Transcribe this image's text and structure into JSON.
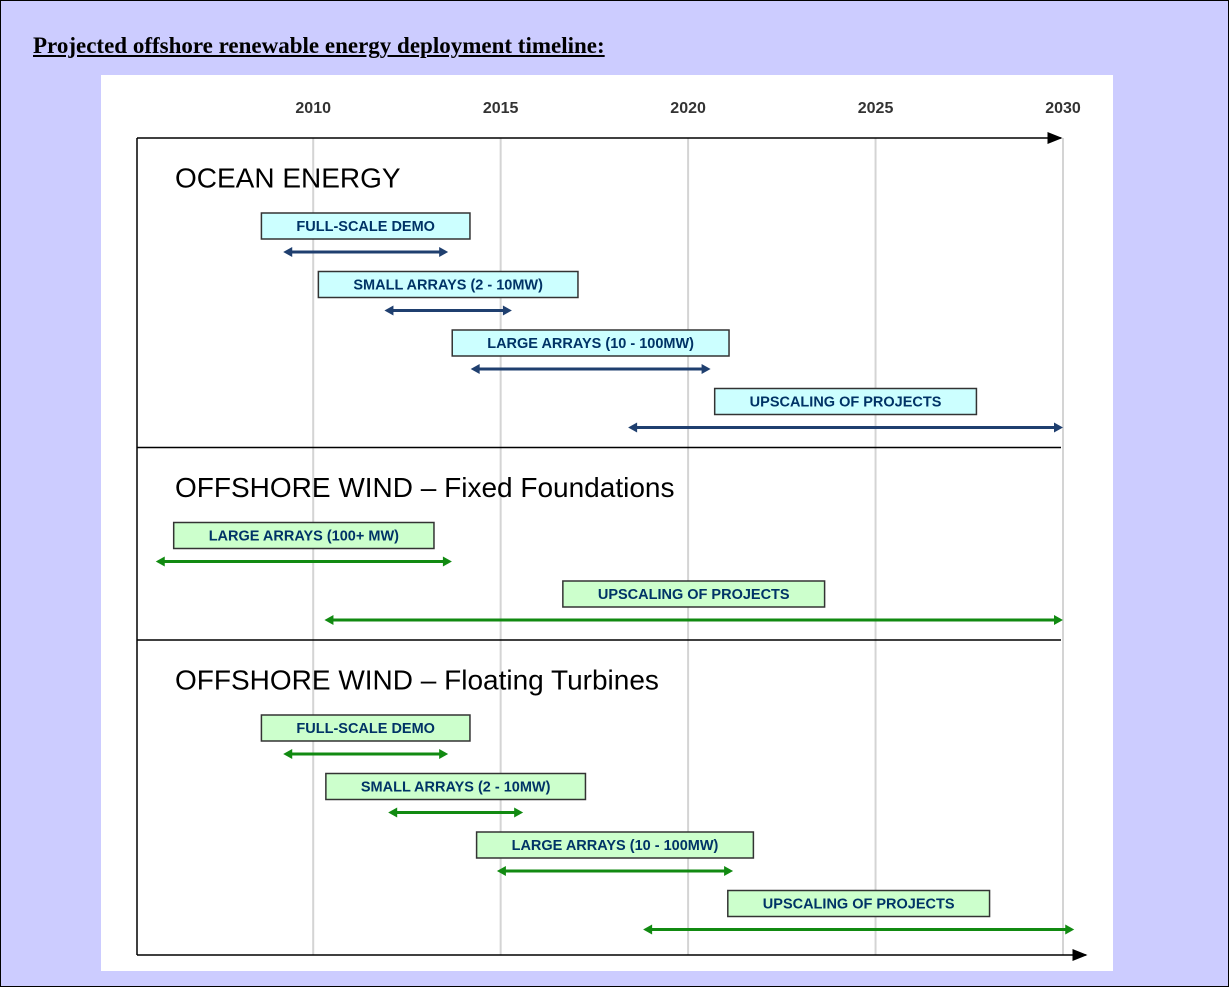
{
  "chart_data": {
    "type": "timeline",
    "title": "Projected offshore renewable energy deployment timeline:",
    "xlim": [
      2005.3,
      2030
    ],
    "xticks": [
      2010,
      2015,
      2020,
      2025,
      2030
    ],
    "grid": true,
    "groups": [
      {
        "name": "OCEAN ENERGY",
        "color": "#1f3f6f",
        "box_color": "#ccffff",
        "tasks": [
          {
            "label": "FULL-SCALE DEMO",
            "start": 2009.2,
            "end": 2013.6
          },
          {
            "label": "SMALL ARRAYS (2 - 10MW)",
            "start": 2011.9,
            "end": 2015.3
          },
          {
            "label": "LARGE ARRAYS (10 - 100MW)",
            "start": 2014.2,
            "end": 2020.6
          },
          {
            "label": "UPSCALING OF PROJECTS",
            "start": 2018.4,
            "end": 2030
          }
        ]
      },
      {
        "name": "OFFSHORE WIND – Fixed Foundations",
        "color": "#118a11",
        "box_color": "#ccffcc",
        "tasks": [
          {
            "label": "LARGE ARRAYS (100+ MW)",
            "start": 2005.8,
            "end": 2013.7
          },
          {
            "label": "UPSCALING OF PROJECTS",
            "start": 2010.3,
            "end": 2030
          }
        ]
      },
      {
        "name": "OFFSHORE WIND – Floating Turbines",
        "color": "#118a11",
        "box_color": "#ccffcc",
        "tasks": [
          {
            "label": "FULL-SCALE DEMO",
            "start": 2009.2,
            "end": 2013.6
          },
          {
            "label": "SMALL ARRAYS (2 - 10MW)",
            "start": 2012.0,
            "end": 2015.6
          },
          {
            "label": "LARGE ARRAYS (10 - 100MW)",
            "start": 2014.9,
            "end": 2021.2
          },
          {
            "label": "UPSCALING OF PROJECTS",
            "start": 2018.8,
            "end": 2030.3
          }
        ]
      }
    ]
  }
}
